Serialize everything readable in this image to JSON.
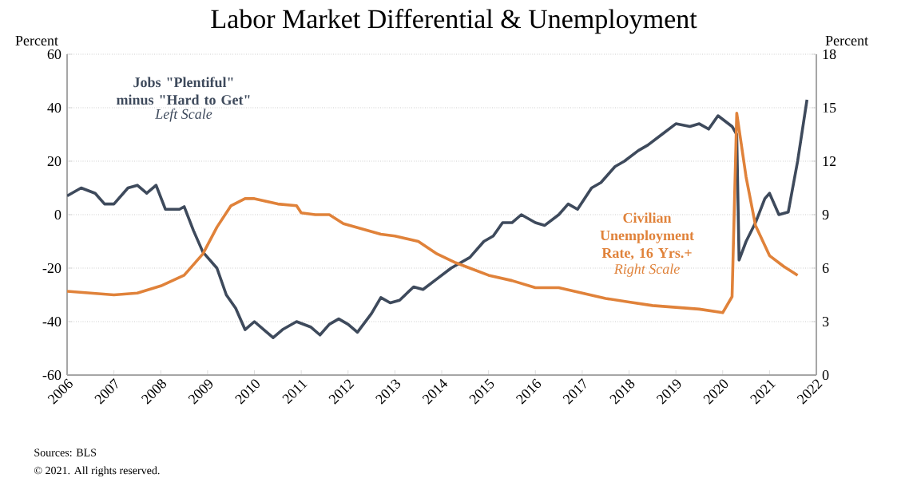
{
  "chart_data": {
    "type": "line",
    "title": "Labor Market Differential & Unemployment",
    "ylabel": "Percent",
    "y2label": "Percent",
    "xlim": [
      2006,
      2022
    ],
    "xticks": [
      2006,
      2007,
      2008,
      2009,
      2010,
      2011,
      2012,
      2013,
      2014,
      2015,
      2016,
      2017,
      2018,
      2019,
      2020,
      2021,
      2022
    ],
    "ylim": [
      -60,
      60
    ],
    "yticks": [
      -60,
      -40,
      -20,
      0,
      20,
      40,
      60
    ],
    "y2lim": [
      0,
      18
    ],
    "y2ticks": [
      0,
      3,
      6,
      9,
      12,
      15,
      18
    ],
    "grid": "y",
    "legend": false,
    "marker": "none",
    "line_style": "solid",
    "series": [
      {
        "name": "Jobs \"Plentiful\" minus \"Hard to Get\"",
        "color": "#3e4a5c",
        "x": [
          2006.0,
          2006.3,
          2006.6,
          2006.8,
          2007.0,
          2007.3,
          2007.5,
          2007.7,
          2007.9,
          2008.1,
          2008.4,
          2008.5,
          2008.7,
          2008.9,
          2009.2,
          2009.4,
          2009.6,
          2009.8,
          2010.0,
          2010.2,
          2010.4,
          2010.6,
          2010.9,
          2011.2,
          2011.4,
          2011.6,
          2011.8,
          2012.0,
          2012.2,
          2012.5,
          2012.7,
          2012.9,
          2013.1,
          2013.4,
          2013.6,
          2013.9,
          2014.2,
          2014.4,
          2014.6,
          2014.9,
          2015.1,
          2015.3,
          2015.5,
          2015.7,
          2016.0,
          2016.2,
          2016.5,
          2016.7,
          2016.9,
          2017.2,
          2017.4,
          2017.7,
          2017.9,
          2018.2,
          2018.4,
          2018.7,
          2019.0,
          2019.3,
          2019.5,
          2019.7,
          2019.9,
          2020.2,
          2020.3,
          2020.35,
          2020.5,
          2020.7,
          2020.9,
          2021.0,
          2021.2,
          2021.4,
          2021.6,
          2021.8
        ],
        "values": [
          7,
          10,
          8,
          4,
          4,
          10,
          11,
          8,
          11,
          2,
          2,
          3,
          -6,
          -14,
          -20,
          -30,
          -35,
          -43,
          -40,
          -43,
          -46,
          -43,
          -40,
          -42,
          -45,
          -41,
          -39,
          -41,
          -44,
          -37,
          -31,
          -33,
          -32,
          -27,
          -28,
          -24,
          -20,
          -18,
          -16,
          -10,
          -8,
          -3,
          -3,
          0,
          -3,
          -4,
          0,
          4,
          2,
          10,
          12,
          18,
          20,
          24,
          26,
          30,
          34,
          33,
          34,
          32,
          37,
          33,
          30,
          -17,
          -10,
          -3,
          6,
          8,
          0,
          1,
          20,
          43
        ]
      },
      {
        "name": "Civilian Unemployment Rate, 16 Yrs.+",
        "color": "#e0823a",
        "axis": "y2",
        "x": [
          2006.0,
          2006.5,
          2007.0,
          2007.5,
          2008.0,
          2008.5,
          2008.9,
          2009.2,
          2009.5,
          2009.8,
          2010.0,
          2010.5,
          2010.9,
          2011.0,
          2011.3,
          2011.6,
          2011.9,
          2012.3,
          2012.7,
          2013.0,
          2013.5,
          2013.9,
          2014.3,
          2014.6,
          2015.0,
          2015.5,
          2016.0,
          2016.5,
          2017.0,
          2017.5,
          2018.0,
          2018.5,
          2019.0,
          2019.5,
          2020.0,
          2020.2,
          2020.3,
          2020.5,
          2020.7,
          2021.0,
          2021.3,
          2021.6
        ],
        "values": [
          4.7,
          4.6,
          4.5,
          4.6,
          5.0,
          5.6,
          6.8,
          8.3,
          9.5,
          9.9,
          9.9,
          9.6,
          9.5,
          9.1,
          9.0,
          9.0,
          8.5,
          8.2,
          7.9,
          7.8,
          7.5,
          6.8,
          6.3,
          6.0,
          5.6,
          5.3,
          4.9,
          4.9,
          4.6,
          4.3,
          4.1,
          3.9,
          3.8,
          3.7,
          3.5,
          4.4,
          14.7,
          11.1,
          8.4,
          6.7,
          6.1,
          5.6
        ]
      }
    ],
    "annotations": [
      "Left Scale",
      "Right Scale",
      "Sources: BLS",
      "© 2021. All rights reserved."
    ]
  }
}
